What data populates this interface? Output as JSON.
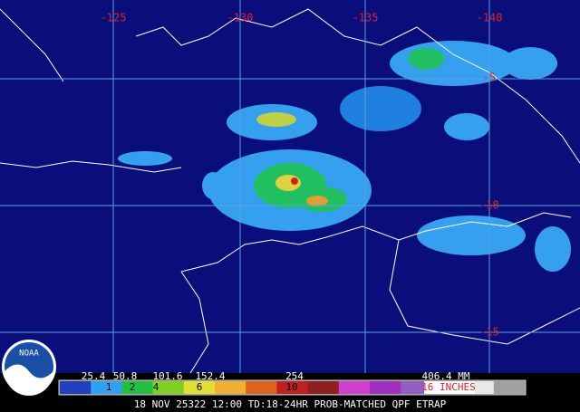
{
  "map": {
    "longitude_labels": [
      "-125",
      "-130",
      "-135",
      "-140"
    ],
    "latitude_labels": [
      "-5",
      "-10",
      "-15"
    ],
    "logo": "NOAA",
    "legend": {
      "mm_labels": [
        "25.4",
        "50.8",
        "101.6",
        "152.4",
        "254",
        "406.4 MM"
      ],
      "inch_labels": [
        "1",
        "2",
        "4",
        "6",
        "10",
        "16 INCHES"
      ]
    },
    "caption": "18 NOV 25322 12:00 TD:18-24HR PROB-MATCHED QPF ETRAP"
  }
}
